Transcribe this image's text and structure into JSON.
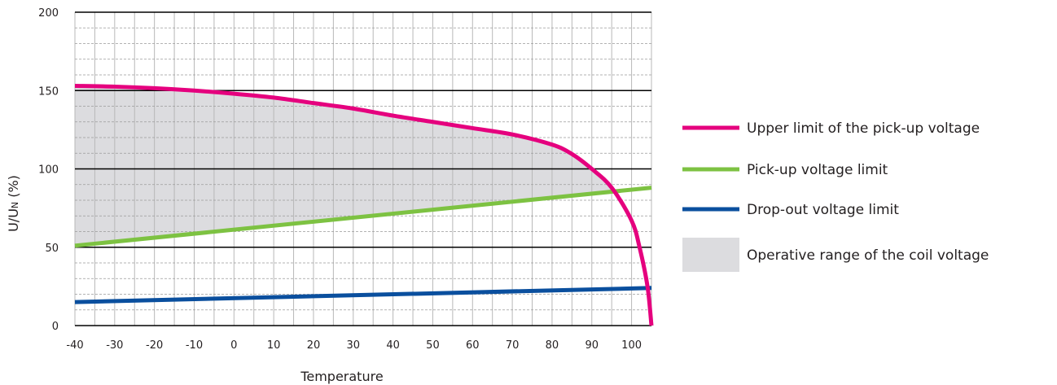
{
  "chart_data": {
    "type": "line",
    "xlabel": "Temperature",
    "ylabel": "U/U",
    "ylabel_sub": "N",
    "ylabel_suffix": " (%)",
    "xlim": [
      -40,
      105
    ],
    "ylim": [
      0,
      200
    ],
    "x_ticks": [
      -40,
      -30,
      -20,
      -10,
      0,
      10,
      20,
      30,
      40,
      50,
      60,
      70,
      80,
      90,
      100
    ],
    "x_tick_labels": [
      "-40",
      "-30",
      "-20",
      "-10",
      "0",
      "10",
      "20",
      "30",
      "40",
      "50",
      "60",
      "70",
      "80",
      "90",
      "100"
    ],
    "y_ticks": [
      0,
      50,
      100,
      150,
      200
    ],
    "y_tick_labels": [
      "0",
      "50",
      "100",
      "150",
      "200"
    ],
    "y_minor_step": 10,
    "x_minor_step": 5,
    "grid": true,
    "legend_position": "right",
    "series": [
      {
        "name": "Upper limit of the pick-up voltage",
        "color": "#e5007e",
        "x": [
          -40,
          -30,
          -20,
          -10,
          0,
          10,
          20,
          30,
          40,
          50,
          60,
          70,
          80,
          85,
          90,
          95,
          100,
          102,
          104,
          105
        ],
        "y": [
          153,
          152.5,
          151.5,
          150,
          148,
          145.5,
          142,
          138.5,
          134,
          130,
          126,
          122,
          115.5,
          109.5,
          100,
          88,
          67,
          50,
          25,
          0
        ]
      },
      {
        "name": "Pick-up voltage limit",
        "color": "#7dc242",
        "x": [
          -40,
          105
        ],
        "y": [
          51,
          88
        ]
      },
      {
        "name": "Drop-out voltage limit",
        "color": "#0a4f9e",
        "x": [
          -40,
          105
        ],
        "y": [
          15,
          24
        ]
      }
    ],
    "area": {
      "name": "Operative range of the coil voltage",
      "color": "#dcdcdf",
      "between": [
        "Pick-up voltage limit",
        "Upper limit of the pick-up voltage"
      ]
    }
  }
}
